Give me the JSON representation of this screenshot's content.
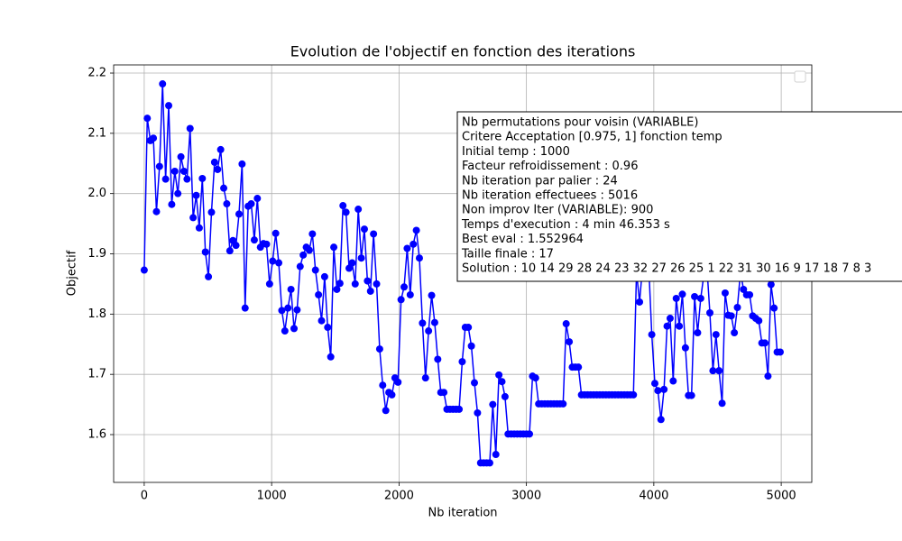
{
  "chart_data": {
    "type": "line",
    "title": "Evolution de l'objectif en fonction des iterations",
    "x_label": "Nb iteration",
    "y_label": "Objectif",
    "color": "#0000ff",
    "marker": "o",
    "grid": true,
    "xlim": [
      -240,
      5240
    ],
    "ylim": [
      1.5207,
      2.2135
    ],
    "xticks": [
      0,
      1000,
      2000,
      3000,
      4000,
      5000
    ],
    "yticks": [
      1.6,
      1.7,
      1.8,
      1.9,
      {
        "value": 2,
        "label": "2.0"
      },
      2.1,
      2.2
    ],
    "x": [
      0,
      24,
      48,
      72,
      96,
      120,
      144,
      168,
      192,
      216,
      240,
      264,
      288,
      312,
      336,
      360,
      384,
      408,
      432,
      456,
      480,
      504,
      528,
      552,
      576,
      600,
      624,
      648,
      672,
      696,
      720,
      744,
      768,
      792,
      816,
      840,
      864,
      888,
      912,
      936,
      960,
      984,
      1008,
      1032,
      1056,
      1080,
      1104,
      1128,
      1152,
      1176,
      1200,
      1224,
      1248,
      1272,
      1296,
      1320,
      1344,
      1368,
      1392,
      1416,
      1440,
      1464,
      1488,
      1512,
      1536,
      1560,
      1584,
      1608,
      1632,
      1656,
      1680,
      1704,
      1728,
      1752,
      1776,
      1800,
      1824,
      1848,
      1872,
      1896,
      1920,
      1944,
      1968,
      1992,
      2016,
      2040,
      2064,
      2088,
      2112,
      2136,
      2160,
      2184,
      2208,
      2232,
      2256,
      2280,
      2304,
      2328,
      2352,
      2376,
      2400,
      2424,
      2448,
      2472,
      2496,
      2520,
      2544,
      2568,
      2592,
      2616,
      2640,
      2664,
      2688,
      2712,
      2736,
      2760,
      2784,
      2808,
      2832,
      2856,
      2880,
      2904,
      2928,
      2952,
      2976,
      3000,
      3024,
      3048,
      3072,
      3096,
      3120,
      3144,
      3168,
      3192,
      3216,
      3240,
      3264,
      3288,
      3312,
      3336,
      3360,
      3384,
      3408,
      3432,
      3456,
      3480,
      3504,
      3528,
      3552,
      3576,
      3600,
      3624,
      3648,
      3672,
      3696,
      3720,
      3744,
      3768,
      3792,
      3816,
      3840,
      3864,
      3888,
      3912,
      3936,
      3960,
      3984,
      4008,
      4032,
      4056,
      4080,
      4104,
      4128,
      4152,
      4176,
      4200,
      4224,
      4248,
      4272,
      4296,
      4320,
      4344,
      4368,
      4392,
      4416,
      4440,
      4464,
      4488,
      4512,
      4536,
      4560,
      4584,
      4608,
      4632,
      4656,
      4680,
      4704,
      4728,
      4752,
      4776,
      4800,
      4824,
      4848,
      4872,
      4896,
      4920,
      4944,
      4968,
      4992
    ],
    "values": [
      1.873,
      2.125,
      2.088,
      2.092,
      1.97,
      2.045,
      2.182,
      2.024,
      2.146,
      1.982,
      2.037,
      2.0,
      2.061,
      2.037,
      2.024,
      2.108,
      1.96,
      1.997,
      1.943,
      2.025,
      1.903,
      1.862,
      1.969,
      2.052,
      2.04,
      2.073,
      2.009,
      1.983,
      1.905,
      1.922,
      1.914,
      1.966,
      2.049,
      1.81,
      1.979,
      1.983,
      1.923,
      1.992,
      1.911,
      1.917,
      1.916,
      1.85,
      1.888,
      1.934,
      1.885,
      1.806,
      1.772,
      1.81,
      1.841,
      1.776,
      1.807,
      1.879,
      1.898,
      1.911,
      1.906,
      1.933,
      1.873,
      1.832,
      1.789,
      1.862,
      1.778,
      1.729,
      1.911,
      1.841,
      1.851,
      1.98,
      1.969,
      1.876,
      1.885,
      1.85,
      1.974,
      1.893,
      1.941,
      1.855,
      1.838,
      1.933,
      1.85,
      1.742,
      1.682,
      1.64,
      1.67,
      1.666,
      1.694,
      1.687,
      1.824,
      1.845,
      1.909,
      1.832,
      1.916,
      1.939,
      1.893,
      1.785,
      1.694,
      1.772,
      1.831,
      1.786,
      1.725,
      1.67,
      1.67,
      1.642,
      1.642,
      1.642,
      1.642,
      1.642,
      1.721,
      1.778,
      1.778,
      1.747,
      1.686,
      1.636,
      1.553,
      1.553,
      1.553,
      1.553,
      1.65,
      1.567,
      1.699,
      1.688,
      1.663,
      1.601,
      1.601,
      1.601,
      1.601,
      1.601,
      1.601,
      1.601,
      1.601,
      1.697,
      1.694,
      1.651,
      1.651,
      1.651,
      1.651,
      1.651,
      1.651,
      1.651,
      1.651,
      1.651,
      1.784,
      1.754,
      1.712,
      1.712,
      1.712,
      1.666,
      1.666,
      1.666,
      1.666,
      1.666,
      1.666,
      1.666,
      1.666,
      1.666,
      1.666,
      1.666,
      1.666,
      1.666,
      1.666,
      1.666,
      1.666,
      1.666,
      1.666,
      1.87,
      1.82,
      1.88,
      1.88,
      1.88,
      1.766,
      1.685,
      1.673,
      1.625,
      1.675,
      1.78,
      1.793,
      1.689,
      1.826,
      1.78,
      1.833,
      1.744,
      1.665,
      1.665,
      1.829,
      1.769,
      1.826,
      1.864,
      1.88,
      1.802,
      1.706,
      1.766,
      1.706,
      1.652,
      1.835,
      1.798,
      1.797,
      1.769,
      1.811,
      1.87,
      1.841,
      1.832,
      1.832,
      1.797,
      1.793,
      1.789,
      1.752,
      1.752,
      1.697,
      1.849,
      1.81,
      1.737,
      1.737
    ],
    "annotation_lines": [
      "Nb permutations pour voisin (VARIABLE)",
      "Critere Acceptation [0.975, 1] fonction temp",
      "Initial temp : 1000",
      "Facteur refroidissement : 0.96",
      "Nb iteration par palier : 24",
      "Nb iteration effectuees : 5016",
      "Non improv Iter (VARIABLE): 900",
      "Temps d'execution : 4 min 46.353 s",
      "Best eval : 1.552964",
      "Taille finale : 17",
      "Solution : 10 14 29 28 24 23 32 27 26 25 1 22 31 30 16 9 17 18 7 8 3"
    ]
  }
}
